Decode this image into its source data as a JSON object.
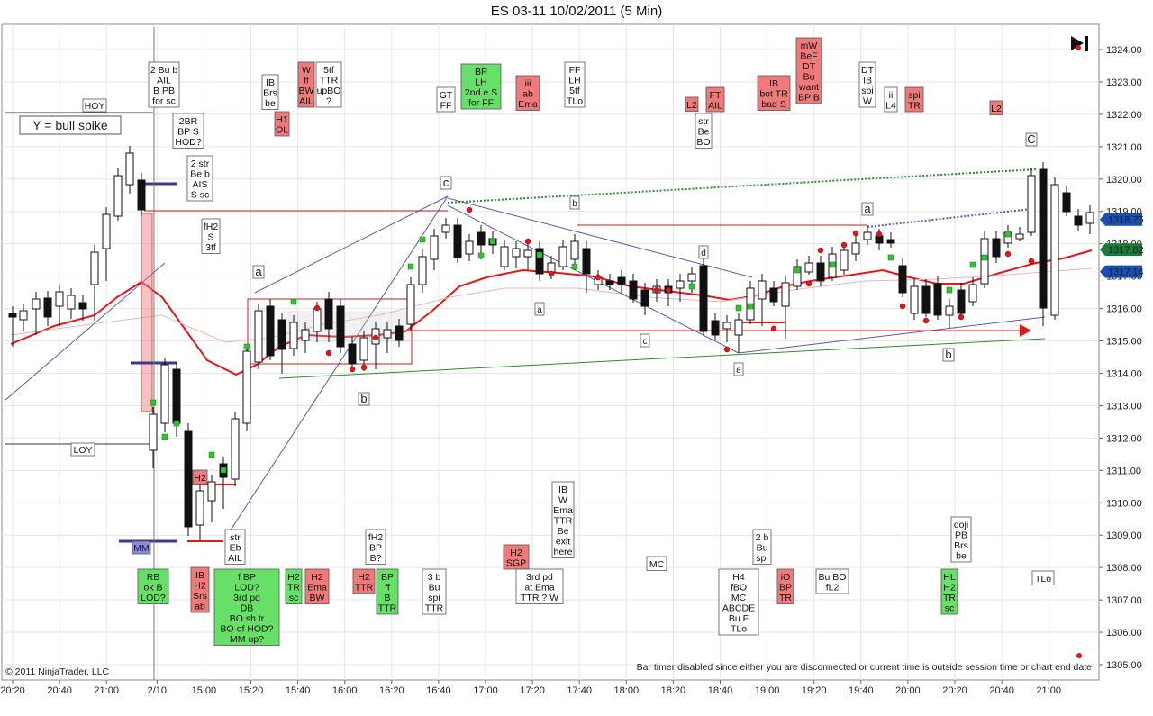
{
  "window": {
    "title": "ES 03-11  10/02/2011 (5 Min)",
    "copyright": "© 2011 NinjaTrader, LLC",
    "bar_timer_note": "Bar timer disabled since either you are disconnected or current time is outside session time or chart end date"
  },
  "chart_data": {
    "type": "candlestick",
    "title": "ES 03-11  10/02/2011 (5 Min)",
    "y_ticks": [
      "1324.00",
      "1323.00",
      "1322.00",
      "1321.00",
      "1320.00",
      "1319.00",
      "1318.00",
      "1317.00",
      "1316.00",
      "1315.00",
      "1314.00",
      "1313.00",
      "1312.00",
      "1311.00",
      "1310.00",
      "1309.00",
      "1308.00",
      "1307.00",
      "1306.00",
      "1305.00"
    ],
    "ylim": [
      1304.7,
      1324.4
    ],
    "x_ticks": [
      "20:20",
      "20:40",
      "21:00",
      "2/10",
      "15:00",
      "15:20",
      "15:40",
      "16:00",
      "16:20",
      "16:40",
      "17:00",
      "17:20",
      "17:40",
      "18:00",
      "18:20",
      "18:40",
      "19:00",
      "19:20",
      "19:40",
      "20:00",
      "20:20",
      "20:40",
      "21:00"
    ],
    "price_markers": [
      {
        "label": "1318.75",
        "value": 1318.75,
        "color": "#1a4fb0"
      },
      {
        "label": "1317.82",
        "value": 1317.82,
        "color": "#1a7a3a"
      },
      {
        "label": "1317.14",
        "value": 1317.14,
        "color": "#1a4fb0"
      }
    ],
    "text_labels": [
      "HOY",
      "LOY",
      "MM",
      "Y = bull spike",
      "a",
      "b",
      "c",
      "d",
      "e",
      "C",
      "L2"
    ],
    "annotations_top": [
      {
        "lines": [
          "2 Bu b",
          "AIL",
          "B PB",
          "for sc"
        ],
        "bg": "#ffffff"
      },
      {
        "lines": [
          "2BR",
          "BP S",
          "HOD?"
        ],
        "bg": "#ffffff"
      },
      {
        "lines": [
          "2 str",
          "Be b",
          "AIS",
          "S sc"
        ],
        "bg": "#ffffff"
      },
      {
        "lines": [
          "fH2",
          "S",
          "3tf"
        ],
        "bg": "#ffffff"
      },
      {
        "lines": [
          "IB",
          "Brs",
          "be"
        ],
        "bg": "#ffffff"
      },
      {
        "lines": [
          "H1",
          "OL"
        ],
        "bg": "#f07a7a"
      },
      {
        "lines": [
          "W",
          "ff",
          "BW",
          "AIL"
        ],
        "bg": "#f07a7a"
      },
      {
        "lines": [
          "5tf",
          "TTR",
          "upBO",
          "?"
        ],
        "bg": "#ffffff"
      },
      {
        "lines": [
          "GT",
          "FF"
        ],
        "bg": "#ffffff"
      },
      {
        "lines": [
          "BP",
          "LH",
          "2nd e S",
          "for FF"
        ],
        "bg": "#66e066"
      },
      {
        "lines": [
          "iii",
          "ab",
          "Ema"
        ],
        "bg": "#f07a7a"
      },
      {
        "lines": [
          "FF",
          "LH",
          "5tf",
          "TLo"
        ],
        "bg": "#ffffff"
      },
      {
        "lines": [
          "L2"
        ],
        "bg": "#f07a7a"
      },
      {
        "lines": [
          "FT",
          "AIL"
        ],
        "bg": "#f07a7a"
      },
      {
        "lines": [
          "str",
          "Be",
          "BO"
        ],
        "bg": "#ffffff"
      },
      {
        "lines": [
          "IB",
          "bot TR",
          "bad S"
        ],
        "bg": "#f07a7a"
      },
      {
        "lines": [
          "mW",
          "BeF",
          "DT",
          "Bu",
          "want",
          "BP B"
        ],
        "bg": "#f07a7a"
      },
      {
        "lines": [
          "DT",
          "IB",
          "spi",
          "W"
        ],
        "bg": "#ffffff"
      },
      {
        "lines": [
          "ii",
          "L4"
        ],
        "bg": "#ffffff"
      },
      {
        "lines": [
          "spi",
          "TR"
        ],
        "bg": "#f07a7a"
      },
      {
        "lines": [
          "L2"
        ],
        "bg": "#f07a7a"
      }
    ],
    "annotations_bottom": [
      {
        "lines": [
          "H2"
        ],
        "bg": "#f07a7a"
      },
      {
        "lines": [
          "str",
          "Eb",
          "AIL"
        ],
        "bg": "#ffffff"
      },
      {
        "lines": [
          "RB",
          "ok B",
          "LOD?"
        ],
        "bg": "#66e066"
      },
      {
        "lines": [
          "IB",
          "H2",
          "Srs",
          "ab"
        ],
        "bg": "#f07a7a"
      },
      {
        "lines": [
          "f BP",
          "LOD?",
          "3rd pd",
          "DB",
          "BO sh tr",
          "BO of HOD?",
          "MM up?"
        ],
        "bg": "#66e066"
      },
      {
        "lines": [
          "H2",
          "TR",
          "sc"
        ],
        "bg": "#66e066"
      },
      {
        "lines": [
          "H2",
          "Ema",
          "BW"
        ],
        "bg": "#f07a7a"
      },
      {
        "lines": [
          "fH2",
          "BP",
          "B?"
        ],
        "bg": "#ffffff"
      },
      {
        "lines": [
          "H2",
          "TTR"
        ],
        "bg": "#f07a7a"
      },
      {
        "lines": [
          "BP",
          "ff",
          "B",
          "TTR"
        ],
        "bg": "#66e066"
      },
      {
        "lines": [
          "3 b",
          "Bu",
          "spi",
          "TTR"
        ],
        "bg": "#ffffff"
      },
      {
        "lines": [
          "H2",
          "SGP"
        ],
        "bg": "#f07a7a"
      },
      {
        "lines": [
          "3rd pd",
          "at Ema",
          "TTR ? W"
        ],
        "bg": "#ffffff"
      },
      {
        "lines": [
          "IB",
          "W",
          "Ema",
          "TTR",
          "Be",
          "exit",
          "here"
        ],
        "bg": "#ffffff"
      },
      {
        "lines": [
          "MC"
        ],
        "bg": "#ffffff"
      },
      {
        "lines": [
          "H4",
          "fBO",
          "MC",
          "ABCDE",
          "Bu F",
          "TLo"
        ],
        "bg": "#ffffff"
      },
      {
        "lines": [
          "2 b",
          "Bu",
          "spi"
        ],
        "bg": "#ffffff"
      },
      {
        "lines": [
          "iO",
          "BP",
          "TR"
        ],
        "bg": "#f07a7a"
      },
      {
        "lines": [
          "Bu BO",
          "fL2"
        ],
        "bg": "#ffffff"
      },
      {
        "lines": [
          "doji",
          "PB",
          "Brs",
          "be"
        ],
        "bg": "#ffffff"
      },
      {
        "lines": [
          "HL",
          "H2",
          "TR",
          "sc"
        ],
        "bg": "#66e066"
      },
      {
        "lines": [
          "TLo"
        ],
        "bg": "#ffffff"
      }
    ],
    "ema_color": "#e01818",
    "grid": true
  }
}
